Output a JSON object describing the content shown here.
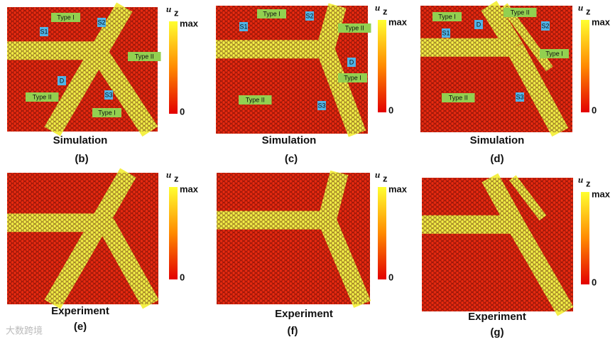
{
  "panels": [
    {
      "caption": "Simulation",
      "label": "(b)",
      "tags": [
        "Type I",
        "S1",
        "S2",
        "Type II",
        "D",
        "S3",
        "Type II",
        "Type I"
      ]
    },
    {
      "caption": "Simulation",
      "label": "(c)",
      "tags": [
        "Type I",
        "S1",
        "S2",
        "Type II",
        "D",
        "Type I",
        "Type II",
        "S3"
      ]
    },
    {
      "caption": "Simulation",
      "label": "(d)",
      "tags": [
        "Type I",
        "Type II",
        "S1",
        "D",
        "S2",
        "Type I",
        "Type II",
        "S3"
      ]
    },
    {
      "caption": "Experiment",
      "label": "(e)",
      "tags": []
    },
    {
      "caption": "Experiment",
      "label": "(f)",
      "tags": []
    },
    {
      "caption": "Experiment",
      "label": "(g)",
      "tags": []
    }
  ],
  "colorbar": {
    "symbol": "u",
    "subscript": "z",
    "max": "max",
    "min": "0"
  },
  "watermark": "大数跨境"
}
